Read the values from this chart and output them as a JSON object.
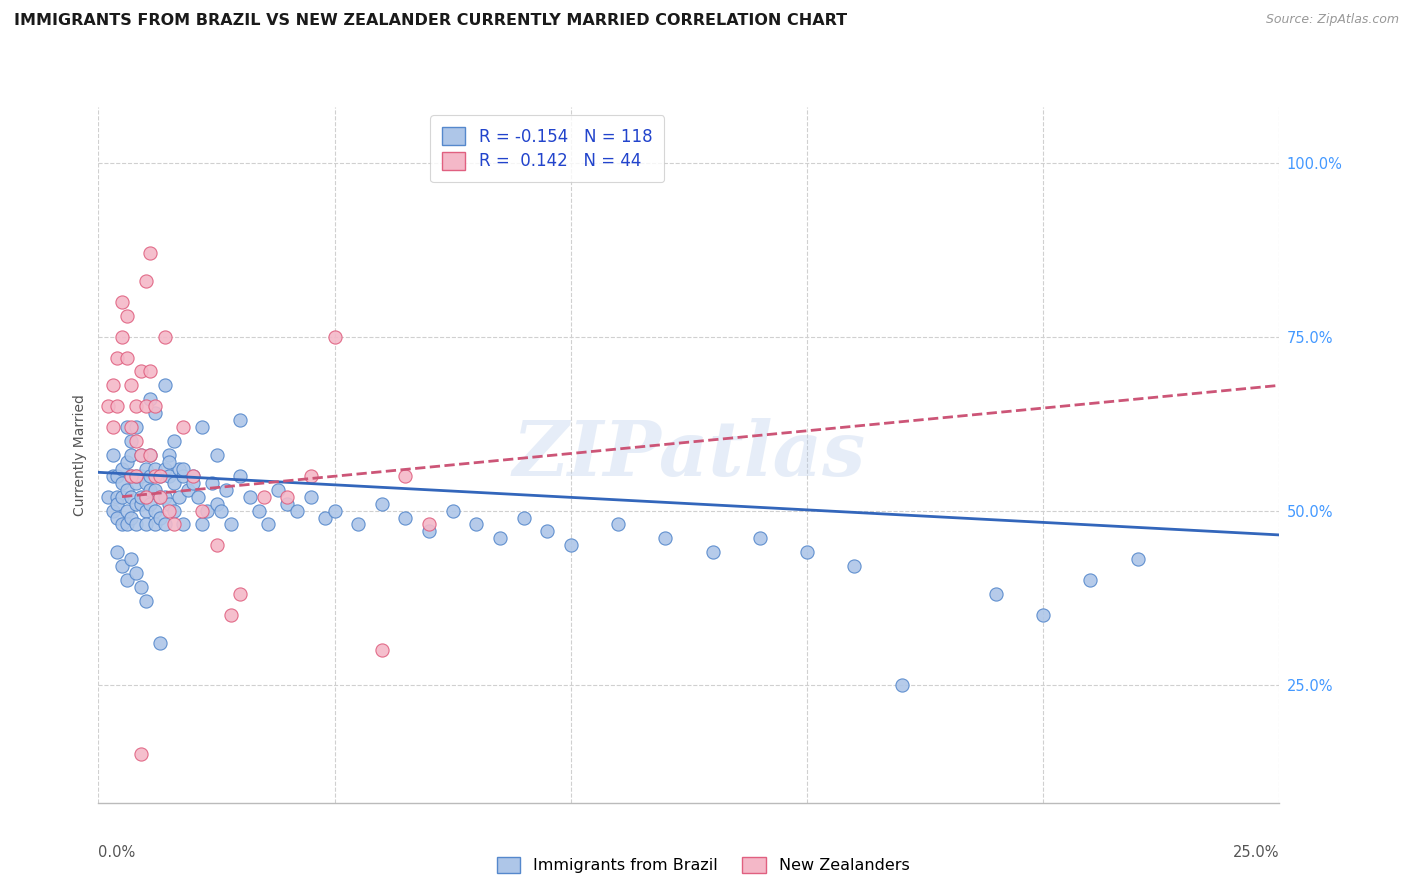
{
  "title": "IMMIGRANTS FROM BRAZIL VS NEW ZEALANDER CURRENTLY MARRIED CORRELATION CHART",
  "source": "Source: ZipAtlas.com",
  "ylabel": "Currently Married",
  "xlim": [
    0.0,
    0.25
  ],
  "ylim": [
    0.08,
    1.08
  ],
  "yticks": [
    0.25,
    0.5,
    0.75,
    1.0
  ],
  "ytick_labels": [
    "25.0%",
    "50.0%",
    "75.0%",
    "100.0%"
  ],
  "xtick_left": "0.0%",
  "xtick_right": "25.0%",
  "watermark": "ZIPatlas",
  "blue_scatter_x": [
    0.002,
    0.003,
    0.003,
    0.003,
    0.004,
    0.004,
    0.004,
    0.004,
    0.005,
    0.005,
    0.005,
    0.005,
    0.006,
    0.006,
    0.006,
    0.006,
    0.006,
    0.007,
    0.007,
    0.007,
    0.007,
    0.007,
    0.008,
    0.008,
    0.008,
    0.008,
    0.008,
    0.009,
    0.009,
    0.009,
    0.009,
    0.01,
    0.01,
    0.01,
    0.01,
    0.01,
    0.011,
    0.011,
    0.011,
    0.011,
    0.012,
    0.012,
    0.012,
    0.012,
    0.013,
    0.013,
    0.013,
    0.014,
    0.014,
    0.014,
    0.015,
    0.015,
    0.015,
    0.016,
    0.016,
    0.017,
    0.017,
    0.018,
    0.018,
    0.019,
    0.02,
    0.021,
    0.022,
    0.023,
    0.024,
    0.025,
    0.026,
    0.027,
    0.028,
    0.03,
    0.032,
    0.034,
    0.036,
    0.038,
    0.04,
    0.042,
    0.045,
    0.048,
    0.05,
    0.055,
    0.06,
    0.065,
    0.07,
    0.075,
    0.08,
    0.085,
    0.09,
    0.095,
    0.1,
    0.11,
    0.12,
    0.13,
    0.14,
    0.15,
    0.16,
    0.17,
    0.19,
    0.2,
    0.21,
    0.22,
    0.004,
    0.005,
    0.006,
    0.007,
    0.008,
    0.009,
    0.01,
    0.011,
    0.012,
    0.013,
    0.014,
    0.015,
    0.016,
    0.018,
    0.02,
    0.022,
    0.025,
    0.03
  ],
  "blue_scatter_y": [
    0.52,
    0.55,
    0.5,
    0.58,
    0.52,
    0.49,
    0.55,
    0.51,
    0.54,
    0.48,
    0.52,
    0.56,
    0.5,
    0.53,
    0.57,
    0.48,
    0.62,
    0.55,
    0.52,
    0.49,
    0.58,
    0.6,
    0.54,
    0.51,
    0.55,
    0.48,
    0.62,
    0.55,
    0.51,
    0.58,
    0.52,
    0.54,
    0.5,
    0.56,
    0.48,
    0.52,
    0.55,
    0.51,
    0.58,
    0.53,
    0.56,
    0.5,
    0.53,
    0.48,
    0.55,
    0.52,
    0.49,
    0.56,
    0.52,
    0.48,
    0.55,
    0.51,
    0.58,
    0.54,
    0.5,
    0.56,
    0.52,
    0.55,
    0.48,
    0.53,
    0.55,
    0.52,
    0.48,
    0.5,
    0.54,
    0.51,
    0.5,
    0.53,
    0.48,
    0.55,
    0.52,
    0.5,
    0.48,
    0.53,
    0.51,
    0.5,
    0.52,
    0.49,
    0.5,
    0.48,
    0.51,
    0.49,
    0.47,
    0.5,
    0.48,
    0.46,
    0.49,
    0.47,
    0.45,
    0.48,
    0.46,
    0.44,
    0.46,
    0.44,
    0.42,
    0.25,
    0.38,
    0.35,
    0.4,
    0.43,
    0.44,
    0.42,
    0.4,
    0.43,
    0.41,
    0.39,
    0.37,
    0.66,
    0.64,
    0.31,
    0.68,
    0.57,
    0.6,
    0.56,
    0.54,
    0.62,
    0.58,
    0.63
  ],
  "pink_scatter_x": [
    0.002,
    0.003,
    0.003,
    0.004,
    0.004,
    0.005,
    0.005,
    0.006,
    0.006,
    0.007,
    0.007,
    0.007,
    0.008,
    0.008,
    0.008,
    0.009,
    0.009,
    0.01,
    0.01,
    0.011,
    0.011,
    0.012,
    0.012,
    0.013,
    0.014,
    0.015,
    0.016,
    0.018,
    0.02,
    0.022,
    0.025,
    0.028,
    0.03,
    0.035,
    0.04,
    0.045,
    0.05,
    0.06,
    0.065,
    0.07,
    0.009,
    0.01,
    0.011,
    0.013
  ],
  "pink_scatter_y": [
    0.65,
    0.68,
    0.62,
    0.72,
    0.65,
    0.8,
    0.75,
    0.78,
    0.72,
    0.68,
    0.55,
    0.62,
    0.65,
    0.6,
    0.55,
    0.7,
    0.58,
    0.65,
    0.52,
    0.7,
    0.58,
    0.65,
    0.55,
    0.52,
    0.75,
    0.5,
    0.48,
    0.62,
    0.55,
    0.5,
    0.45,
    0.35,
    0.38,
    0.52,
    0.52,
    0.55,
    0.75,
    0.3,
    0.55,
    0.48,
    0.15,
    0.83,
    0.87,
    0.55
  ],
  "blue_line_x": [
    0.0,
    0.25
  ],
  "blue_line_y": [
    0.555,
    0.465
  ],
  "pink_line_x": [
    0.005,
    0.25
  ],
  "pink_line_y": [
    0.52,
    0.68
  ],
  "blue_color": "#aec6e8",
  "pink_color": "#f4b8c8",
  "blue_edge": "#5588cc",
  "pink_edge": "#e06080",
  "blue_line_color": "#3366bb",
  "pink_line_color": "#cc5577",
  "grid_color": "#d0d0d0",
  "bg_color": "#ffffff",
  "title_fontsize": 11.5,
  "ylabel_fontsize": 10,
  "tick_fontsize": 10.5,
  "scatter_size": 90,
  "legend_r1": "R = -0.154   N = 118",
  "legend_r2": "R =  0.142   N = 44",
  "legend_label1": "Immigrants from Brazil",
  "legend_label2": "New Zealanders"
}
